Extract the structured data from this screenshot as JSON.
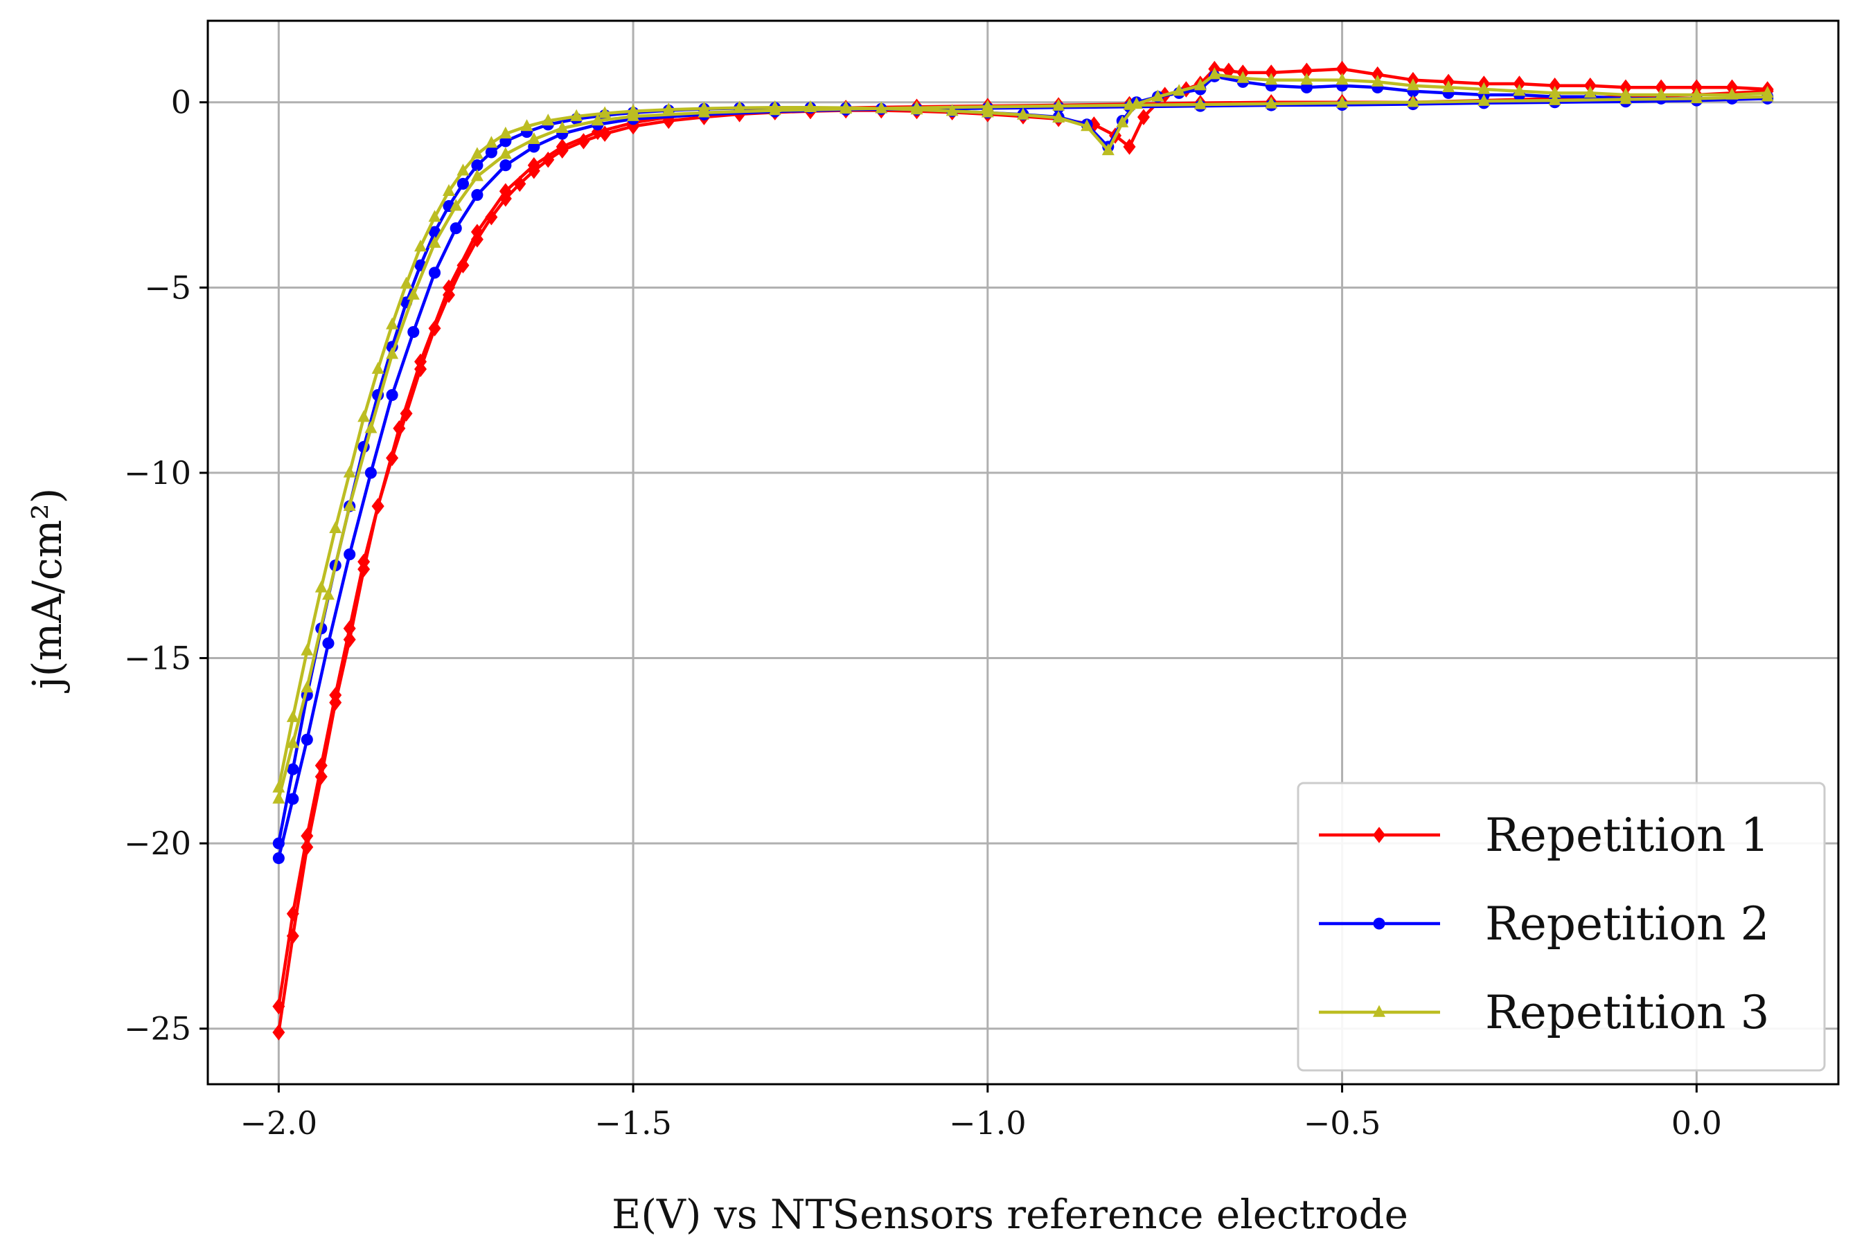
{
  "chart_data": {
    "type": "line",
    "title": "",
    "xlabel": "E(V) vs NTSensors reference electrode",
    "ylabel": "j(mA/cm²)",
    "xlim": [
      -2.1,
      0.2
    ],
    "ylim": [
      -26.5,
      2.2
    ],
    "grid": true,
    "legend_position": "bottom-right",
    "x_ticks": [
      -2.0,
      -1.5,
      -1.0,
      -0.5,
      0.0
    ],
    "x_tick_labels": [
      "−2.0",
      "−1.5",
      "−1.0",
      "−0.5",
      "0.0"
    ],
    "y_ticks": [
      0,
      -5,
      -10,
      -15,
      -20,
      -25
    ],
    "y_tick_labels": [
      "0",
      "−5",
      "−10",
      "−15",
      "−20",
      "−25"
    ],
    "series": [
      {
        "name": "Repetition 1",
        "color": "#ff0000",
        "marker": "diamond",
        "forward": {
          "x": [
            -2.0,
            -1.98,
            -1.96,
            -1.94,
            -1.92,
            -1.9,
            -1.88,
            -1.86,
            -1.84,
            -1.82,
            -1.8,
            -1.78,
            -1.76,
            -1.74,
            -1.72,
            -1.7,
            -1.68,
            -1.66,
            -1.64,
            -1.62,
            -1.6,
            -1.57,
            -1.54,
            -1.5,
            -1.45,
            -1.4,
            -1.35,
            -1.3,
            -1.25,
            -1.2,
            -1.15,
            -1.1,
            -1.05,
            -1.0,
            -0.95,
            -0.9,
            -0.85,
            -0.82,
            -0.8,
            -0.78,
            -0.75,
            -0.72,
            -0.7,
            -0.68,
            -0.66,
            -0.64,
            -0.6,
            -0.55,
            -0.5,
            -0.45,
            -0.4,
            -0.35,
            -0.3,
            -0.25,
            -0.2,
            -0.15,
            -0.1,
            -0.05,
            0.0,
            0.05,
            0.1
          ],
          "y": [
            -24.4,
            -21.9,
            -19.8,
            -17.9,
            -16.0,
            -14.2,
            -12.4,
            -10.9,
            -9.6,
            -8.4,
            -7.2,
            -6.1,
            -5.2,
            -4.4,
            -3.7,
            -3.1,
            -2.6,
            -2.2,
            -1.85,
            -1.55,
            -1.3,
            -1.05,
            -0.85,
            -0.65,
            -0.5,
            -0.4,
            -0.32,
            -0.27,
            -0.24,
            -0.22,
            -0.22,
            -0.24,
            -0.27,
            -0.32,
            -0.38,
            -0.45,
            -0.6,
            -0.9,
            -1.2,
            -0.4,
            0.2,
            0.35,
            0.5,
            0.9,
            0.85,
            0.8,
            0.8,
            0.85,
            0.9,
            0.75,
            0.6,
            0.55,
            0.5,
            0.5,
            0.45,
            0.45,
            0.4,
            0.4,
            0.4,
            0.4,
            0.35
          ]
        },
        "reverse": {
          "x": [
            0.1,
            0.0,
            -0.1,
            -0.2,
            -0.3,
            -0.4,
            -0.5,
            -0.6,
            -0.7,
            -0.8,
            -0.9,
            -1.0,
            -1.1,
            -1.2,
            -1.3,
            -1.4,
            -1.45,
            -1.5,
            -1.55,
            -1.6,
            -1.64,
            -1.68,
            -1.72,
            -1.76,
            -1.8,
            -1.83,
            -1.86,
            -1.88,
            -1.9,
            -1.92,
            -1.94,
            -1.96,
            -1.98,
            -2.0
          ],
          "y": [
            0.3,
            0.2,
            0.15,
            0.1,
            0.05,
            0.0,
            0.0,
            0.0,
            -0.02,
            -0.05,
            -0.08,
            -0.1,
            -0.12,
            -0.15,
            -0.2,
            -0.3,
            -0.4,
            -0.55,
            -0.8,
            -1.2,
            -1.7,
            -2.4,
            -3.5,
            -5.0,
            -7.0,
            -8.8,
            -10.9,
            -12.6,
            -14.5,
            -16.2,
            -18.2,
            -20.1,
            -22.5,
            -25.1
          ]
        }
      },
      {
        "name": "Repetition 2",
        "color": "#0000ff",
        "marker": "circle",
        "forward": {
          "x": [
            -2.0,
            -1.98,
            -1.96,
            -1.94,
            -1.92,
            -1.9,
            -1.88,
            -1.86,
            -1.84,
            -1.82,
            -1.8,
            -1.78,
            -1.76,
            -1.74,
            -1.72,
            -1.7,
            -1.68,
            -1.65,
            -1.62,
            -1.58,
            -1.54,
            -1.5,
            -1.45,
            -1.4,
            -1.35,
            -1.3,
            -1.25,
            -1.2,
            -1.15,
            -1.1,
            -1.05,
            -1.0,
            -0.95,
            -0.9,
            -0.86,
            -0.83,
            -0.81,
            -0.79,
            -0.76,
            -0.73,
            -0.7,
            -0.68,
            -0.64,
            -0.6,
            -0.55,
            -0.5,
            -0.45,
            -0.4,
            -0.35,
            -0.3,
            -0.25,
            -0.2,
            -0.15,
            -0.1,
            -0.05,
            0.0,
            0.05,
            0.1
          ],
          "y": [
            -20.0,
            -18.0,
            -16.0,
            -14.2,
            -12.5,
            -10.9,
            -9.3,
            -7.9,
            -6.6,
            -5.4,
            -4.4,
            -3.5,
            -2.8,
            -2.2,
            -1.7,
            -1.35,
            -1.05,
            -0.8,
            -0.6,
            -0.45,
            -0.35,
            -0.28,
            -0.22,
            -0.18,
            -0.16,
            -0.15,
            -0.15,
            -0.16,
            -0.18,
            -0.2,
            -0.24,
            -0.28,
            -0.33,
            -0.4,
            -0.6,
            -1.2,
            -0.5,
            0.0,
            0.15,
            0.25,
            0.35,
            0.7,
            0.55,
            0.45,
            0.4,
            0.45,
            0.4,
            0.3,
            0.25,
            0.2,
            0.2,
            0.15,
            0.15,
            0.1,
            0.1,
            0.1,
            0.1,
            0.15
          ]
        },
        "reverse": {
          "x": [
            0.1,
            0.0,
            -0.1,
            -0.2,
            -0.3,
            -0.4,
            -0.5,
            -0.6,
            -0.7,
            -0.8,
            -0.9,
            -1.0,
            -1.1,
            -1.2,
            -1.3,
            -1.4,
            -1.5,
            -1.55,
            -1.6,
            -1.64,
            -1.68,
            -1.72,
            -1.75,
            -1.78,
            -1.81,
            -1.84,
            -1.87,
            -1.9,
            -1.93,
            -1.96,
            -1.98,
            -2.0
          ],
          "y": [
            0.1,
            0.05,
            0.02,
            0.0,
            -0.02,
            -0.05,
            -0.07,
            -0.08,
            -0.1,
            -0.12,
            -0.14,
            -0.16,
            -0.18,
            -0.2,
            -0.25,
            -0.33,
            -0.45,
            -0.6,
            -0.85,
            -1.2,
            -1.7,
            -2.5,
            -3.4,
            -4.6,
            -6.2,
            -7.9,
            -10.0,
            -12.2,
            -14.6,
            -17.2,
            -18.8,
            -20.4
          ]
        }
      },
      {
        "name": "Repetition 3",
        "color": "#bcbd22",
        "marker": "triangle",
        "forward": {
          "x": [
            -2.0,
            -1.98,
            -1.96,
            -1.94,
            -1.92,
            -1.9,
            -1.88,
            -1.86,
            -1.84,
            -1.82,
            -1.8,
            -1.78,
            -1.76,
            -1.74,
            -1.72,
            -1.7,
            -1.68,
            -1.65,
            -1.62,
            -1.58,
            -1.54,
            -1.5,
            -1.45,
            -1.4,
            -1.35,
            -1.3,
            -1.25,
            -1.2,
            -1.15,
            -1.1,
            -1.05,
            -1.0,
            -0.95,
            -0.9,
            -0.86,
            -0.83,
            -0.81,
            -0.79,
            -0.76,
            -0.73,
            -0.7,
            -0.68,
            -0.64,
            -0.6,
            -0.55,
            -0.5,
            -0.45,
            -0.4,
            -0.35,
            -0.3,
            -0.25,
            -0.2,
            -0.15,
            -0.1,
            -0.05,
            0.0,
            0.05,
            0.1
          ],
          "y": [
            -18.5,
            -16.6,
            -14.8,
            -13.1,
            -11.5,
            -10.0,
            -8.5,
            -7.2,
            -6.0,
            -4.9,
            -3.9,
            -3.1,
            -2.4,
            -1.85,
            -1.4,
            -1.1,
            -0.85,
            -0.65,
            -0.5,
            -0.38,
            -0.3,
            -0.24,
            -0.2,
            -0.17,
            -0.15,
            -0.14,
            -0.14,
            -0.15,
            -0.17,
            -0.2,
            -0.24,
            -0.28,
            -0.34,
            -0.42,
            -0.65,
            -1.3,
            -0.55,
            -0.05,
            0.15,
            0.3,
            0.45,
            0.75,
            0.65,
            0.6,
            0.6,
            0.6,
            0.55,
            0.45,
            0.4,
            0.35,
            0.3,
            0.25,
            0.25,
            0.2,
            0.2,
            0.2,
            0.2,
            0.25
          ]
        },
        "reverse": {
          "x": [
            0.1,
            0.0,
            -0.1,
            -0.2,
            -0.3,
            -0.4,
            -0.5,
            -0.6,
            -0.7,
            -0.8,
            -0.9,
            -1.0,
            -1.1,
            -1.2,
            -1.3,
            -1.4,
            -1.5,
            -1.55,
            -1.6,
            -1.64,
            -1.68,
            -1.72,
            -1.75,
            -1.78,
            -1.81,
            -1.84,
            -1.87,
            -1.9,
            -1.93,
            -1.96,
            -1.98,
            -2.0
          ],
          "y": [
            0.15,
            0.1,
            0.08,
            0.05,
            0.03,
            0.0,
            -0.02,
            -0.04,
            -0.06,
            -0.08,
            -0.1,
            -0.12,
            -0.15,
            -0.18,
            -0.22,
            -0.28,
            -0.38,
            -0.5,
            -0.7,
            -1.0,
            -1.4,
            -2.0,
            -2.8,
            -3.8,
            -5.2,
            -6.8,
            -8.8,
            -10.9,
            -13.3,
            -15.8,
            -17.3,
            -18.8
          ]
        }
      }
    ]
  }
}
